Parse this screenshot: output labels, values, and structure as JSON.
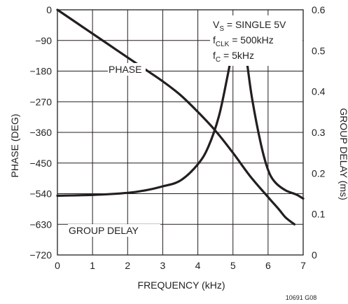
{
  "chart_data": {
    "type": "line",
    "title": "",
    "xlabel": "FREQUENCY (kHz)",
    "ylabel_left": "PHASE (DEG)",
    "ylabel_right": "GROUP DELAY (ms)",
    "xlim": [
      0,
      7
    ],
    "ylim_left": [
      -720,
      0
    ],
    "ylim_right": [
      0,
      0.6
    ],
    "x_ticks": [
      "0",
      "1",
      "2",
      "3",
      "4",
      "5",
      "6",
      "7"
    ],
    "y_left_ticks": [
      "0",
      "−90",
      "−180",
      "−270",
      "−360",
      "−450",
      "−540",
      "−630",
      "−720"
    ],
    "y_right_ticks": [
      "0.6",
      "0.5",
      "0.4",
      "0.3",
      "0.2",
      "0.1",
      "0"
    ],
    "grid": true,
    "series": [
      {
        "name": "PHASE",
        "axis": "left",
        "x": [
          0,
          0.5,
          1,
          1.5,
          2,
          2.5,
          3,
          3.5,
          4,
          4.5,
          5,
          5.5,
          6,
          6.3,
          6.5,
          6.75
        ],
        "y": [
          0,
          -35,
          -70,
          -105,
          -140,
          -175,
          -210,
          -250,
          -300,
          -355,
          -420,
          -490,
          -550,
          -585,
          -610,
          -630
        ]
      },
      {
        "name": "GROUP DELAY",
        "axis": "right",
        "x": [
          0,
          1,
          2,
          2.5,
          3,
          3.5,
          4,
          4.3,
          4.6,
          4.85,
          5.0,
          5.1,
          5.2,
          5.3,
          5.4,
          5.55,
          5.8,
          6.0,
          6.2,
          6.5,
          6.8,
          7.0
        ],
        "y": [
          0.145,
          0.147,
          0.152,
          0.158,
          0.168,
          0.182,
          0.222,
          0.265,
          0.34,
          0.44,
          0.505,
          0.525,
          0.53,
          0.52,
          0.47,
          0.38,
          0.27,
          0.208,
          0.178,
          0.158,
          0.148,
          0.138
        ]
      }
    ],
    "annotations": {
      "phase_label": "PHASE",
      "group_delay_label": "GROUP DELAY",
      "vs_main": "V",
      "vs_sub": "S",
      "vs_rest": " = SINGLE 5V",
      "fclk_main": "f",
      "fclk_sub": "CLK",
      "fclk_rest": " = 500kHz",
      "fc_main": "f",
      "fc_sub": "C",
      "fc_rest": " = 5kHz"
    },
    "figure_code": "10691 G08"
  }
}
